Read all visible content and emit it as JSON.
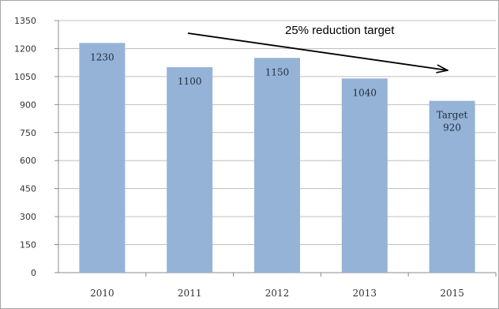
{
  "chart_data": {
    "type": "bar",
    "categories": [
      "2010",
      "2011",
      "2012",
      "2013",
      "2015"
    ],
    "values": [
      1230,
      1100,
      1150,
      1040,
      920
    ],
    "data_labels": [
      [
        "1230"
      ],
      [
        "1100"
      ],
      [
        "1150"
      ],
      [
        "1040"
      ],
      [
        "Target",
        "920"
      ]
    ],
    "yticks": [
      0,
      150,
      300,
      450,
      600,
      750,
      900,
      1050,
      1200,
      1350
    ],
    "ylim": [
      0,
      1350
    ],
    "grid": true,
    "legend": "none",
    "bar_color": "#95b3d7",
    "annotation": "25% reduction target",
    "title": "",
    "xlabel": "",
    "ylabel": ""
  }
}
